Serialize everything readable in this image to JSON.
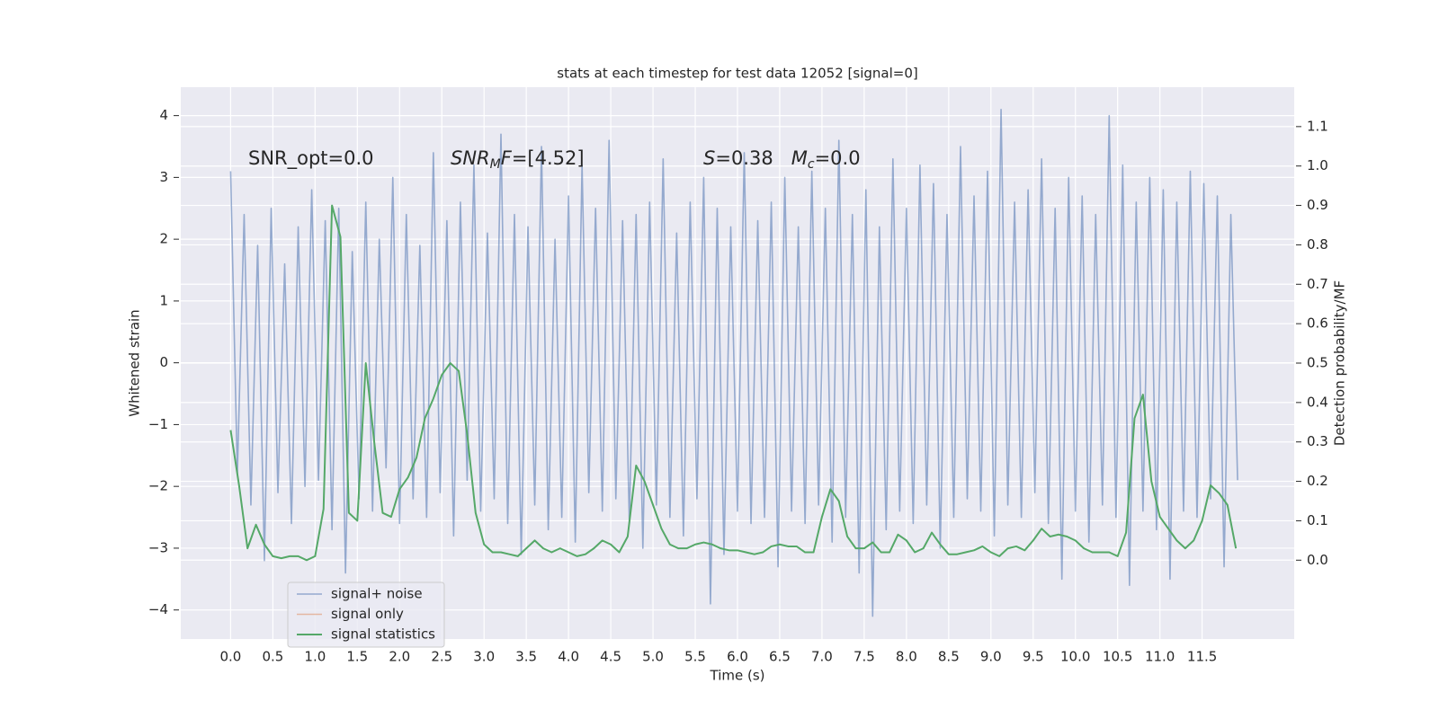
{
  "chart_data": {
    "type": "line",
    "title": "stats at each timestep for test data 12052 [signal=0]",
    "xlabel": "Time (s)",
    "ylabel": "Whitened strain",
    "y2label": "Detection probability/MF",
    "grid": true,
    "legend": "lower left",
    "annotations": [
      [
        "SNR_opt=0.0"
      ],
      [
        "SNR",
        "M",
        "F",
        "=[4.52]"
      ],
      [
        "S",
        "=0.38   ",
        "M",
        "c",
        "=0.0"
      ]
    ],
    "xlim": [
      -0.59,
      12.59
    ],
    "xticks": [
      {
        "value": 0,
        "label": "0.0"
      },
      0.5,
      {
        "value": 1,
        "label": "1.0"
      },
      1.5,
      {
        "value": 2,
        "label": "2.0"
      },
      2.5,
      {
        "value": 3,
        "label": "3.0"
      },
      3.5,
      {
        "value": 4,
        "label": "4.0"
      },
      4.5,
      {
        "value": 5,
        "label": "5.0"
      },
      5.5,
      {
        "value": 6,
        "label": "6.0"
      },
      6.5,
      {
        "value": 7,
        "label": "7.0"
      },
      7.5,
      {
        "value": 8,
        "label": "8.0"
      },
      8.5,
      {
        "value": 9,
        "label": "9.0"
      },
      9.5,
      {
        "value": 10,
        "label": "10.0"
      },
      10.5,
      {
        "value": 11,
        "label": "11.0"
      },
      11.5
    ],
    "ylim": [
      -4.47,
      4.46
    ],
    "yticks": [
      {
        "value": -4,
        "label": "−4"
      },
      {
        "value": -3,
        "label": "−3"
      },
      {
        "value": -2,
        "label": "−2"
      },
      {
        "value": -1,
        "label": "−1"
      },
      0,
      1,
      2,
      3,
      4
    ],
    "y2lim": [
      -0.2,
      1.2
    ],
    "y2ticks": [
      {
        "value": 0,
        "label": "0.0"
      },
      0.1,
      0.2,
      0.3,
      0.4,
      0.5,
      0.6,
      0.7,
      0.8,
      0.9,
      {
        "value": 1,
        "label": "1.0"
      },
      1.1
    ],
    "series": [
      {
        "name": "signal+ noise",
        "color": "#4c72b0",
        "x": [
          0,
          0.08,
          0.16,
          0.24,
          0.32,
          0.4,
          0.48,
          0.56,
          0.64,
          0.72,
          0.8,
          0.88,
          0.96,
          1.04,
          1.12,
          1.2,
          1.28,
          1.36,
          1.44,
          1.52,
          1.6,
          1.68,
          1.76,
          1.84,
          1.92,
          2,
          2.08,
          2.16,
          2.24,
          2.32,
          2.4,
          2.48,
          2.56,
          2.64,
          2.72,
          2.8,
          2.88,
          2.96,
          3.04,
          3.12,
          3.2,
          3.28,
          3.36,
          3.44,
          3.52,
          3.6,
          3.68,
          3.76,
          3.84,
          3.92,
          4,
          4.08,
          4.16,
          4.24,
          4.32,
          4.4,
          4.48,
          4.56,
          4.64,
          4.72,
          4.8,
          4.88,
          4.96,
          5.04,
          5.12,
          5.2,
          5.28,
          5.36,
          5.44,
          5.52,
          5.6,
          5.68,
          5.76,
          5.84,
          5.92,
          6,
          6.08,
          6.16,
          6.24,
          6.32,
          6.4,
          6.48,
          6.56,
          6.64,
          6.72,
          6.8,
          6.88,
          6.96,
          7.04,
          7.12,
          7.2,
          7.28,
          7.36,
          7.44,
          7.52,
          7.6,
          7.68,
          7.76,
          7.84,
          7.92,
          8,
          8.08,
          8.16,
          8.24,
          8.32,
          8.4,
          8.48,
          8.56,
          8.64,
          8.72,
          8.8,
          8.88,
          8.96,
          9.04,
          9.12,
          9.2,
          9.28,
          9.36,
          9.44,
          9.52,
          9.6,
          9.68,
          9.76,
          9.84,
          9.92,
          10,
          10.08,
          10.16,
          10.24,
          10.32,
          10.4,
          10.48,
          10.56,
          10.64,
          10.72,
          10.8,
          10.88,
          10.96,
          11.04,
          11.12,
          11.2,
          11.28,
          11.36,
          11.44,
          11.52,
          11.6,
          11.68,
          11.76,
          11.84,
          11.92
        ],
        "values": [
          3.1,
          -1.8,
          2.4,
          -2.3,
          1.9,
          -3.2,
          2.5,
          -2.1,
          1.6,
          -2.6,
          2.2,
          -2.0,
          2.8,
          -1.9,
          2.3,
          -2.7,
          2.5,
          -3.4,
          1.8,
          -2.2,
          2.6,
          -2.4,
          2.0,
          -1.7,
          3.0,
          -2.6,
          2.4,
          -2.2,
          1.9,
          -2.5,
          3.4,
          -2.1,
          2.3,
          -2.8,
          2.6,
          -1.9,
          3.2,
          -2.4,
          2.1,
          -2.2,
          3.7,
          -2.6,
          2.4,
          -3.1,
          2.2,
          -2.3,
          3.5,
          -2.7,
          2.0,
          -2.5,
          2.7,
          -2.9,
          3.2,
          -2.1,
          2.5,
          -2.4,
          3.6,
          -2.2,
          2.3,
          -2.6,
          2.4,
          -3.0,
          2.6,
          -2.3,
          3.3,
          -2.5,
          2.1,
          -2.8,
          2.6,
          -2.2,
          3.0,
          -3.9,
          2.5,
          -3.1,
          2.2,
          -2.4,
          3.4,
          -2.6,
          2.3,
          -2.5,
          2.6,
          -3.3,
          3.0,
          -2.4,
          2.2,
          -2.6,
          3.1,
          -2.3,
          2.5,
          -2.9,
          3.6,
          -2.5,
          2.4,
          -3.4,
          2.8,
          -4.1,
          2.2,
          -2.7,
          3.3,
          -2.4,
          2.5,
          -2.6,
          3.2,
          -2.3,
          2.9,
          -3.0,
          2.4,
          -2.5,
          3.5,
          -2.2,
          2.7,
          -2.4,
          3.1,
          -2.8,
          4.1,
          -2.3,
          2.6,
          -2.5,
          2.8,
          -2.1,
          3.3,
          -2.6,
          2.5,
          -3.5,
          3.0,
          -2.4,
          2.7,
          -2.9,
          2.4,
          -2.3,
          4.0,
          -2.5,
          3.2,
          -3.6,
          2.6,
          -2.4,
          3.0,
          -2.7,
          2.8,
          -3.5,
          2.6,
          -2.4,
          3.1,
          -2.5,
          2.9,
          -2.2,
          2.7,
          -3.3,
          2.4,
          -1.9
        ]
      },
      {
        "name": "signal only",
        "color": "#dd8452"
      },
      {
        "name": "signal statistics",
        "color": "#55a868",
        "axis": "y2",
        "x": [
          0,
          0.1,
          0.2,
          0.3,
          0.4,
          0.5,
          0.6,
          0.7,
          0.8,
          0.9,
          1,
          1.1,
          1.2,
          1.3,
          1.4,
          1.5,
          1.6,
          1.7,
          1.8,
          1.9,
          2,
          2.1,
          2.2,
          2.3,
          2.4,
          2.5,
          2.6,
          2.7,
          2.8,
          2.9,
          3,
          3.1,
          3.2,
          3.3,
          3.4,
          3.5,
          3.6,
          3.7,
          3.8,
          3.9,
          4,
          4.1,
          4.2,
          4.3,
          4.4,
          4.5,
          4.6,
          4.7,
          4.8,
          4.9,
          5,
          5.1,
          5.2,
          5.3,
          5.4,
          5.5,
          5.6,
          5.7,
          5.8,
          5.9,
          6,
          6.1,
          6.2,
          6.3,
          6.4,
          6.5,
          6.6,
          6.7,
          6.8,
          6.9,
          7,
          7.1,
          7.2,
          7.3,
          7.4,
          7.5,
          7.6,
          7.7,
          7.8,
          7.9,
          8,
          8.1,
          8.2,
          8.3,
          8.4,
          8.5,
          8.6,
          8.7,
          8.8,
          8.9,
          9,
          9.1,
          9.2,
          9.3,
          9.4,
          9.5,
          9.6,
          9.7,
          9.8,
          9.9,
          10,
          10.1,
          10.2,
          10.3,
          10.4,
          10.5,
          10.6,
          10.7,
          10.8,
          10.9,
          11,
          11.1,
          11.2,
          11.3,
          11.4,
          11.5,
          11.6,
          11.7,
          11.8,
          11.9
        ],
        "values": [
          0.33,
          0.19,
          0.03,
          0.09,
          0.04,
          0.01,
          0.005,
          0.01,
          0.01,
          0,
          0.01,
          0.13,
          0.9,
          0.82,
          0.12,
          0.1,
          0.5,
          0.3,
          0.12,
          0.11,
          0.18,
          0.21,
          0.26,
          0.36,
          0.41,
          0.47,
          0.5,
          0.48,
          0.32,
          0.12,
          0.04,
          0.02,
          0.02,
          0.015,
          0.01,
          0.03,
          0.05,
          0.03,
          0.02,
          0.03,
          0.02,
          0.01,
          0.015,
          0.03,
          0.05,
          0.04,
          0.02,
          0.06,
          0.24,
          0.2,
          0.14,
          0.08,
          0.04,
          0.03,
          0.03,
          0.04,
          0.045,
          0.04,
          0.03,
          0.025,
          0.025,
          0.02,
          0.015,
          0.02,
          0.035,
          0.04,
          0.035,
          0.035,
          0.02,
          0.02,
          0.11,
          0.18,
          0.15,
          0.06,
          0.03,
          0.03,
          0.045,
          0.02,
          0.02,
          0.065,
          0.05,
          0.02,
          0.03,
          0.07,
          0.04,
          0.015,
          0.015,
          0.02,
          0.025,
          0.035,
          0.02,
          0.01,
          0.03,
          0.035,
          0.025,
          0.05,
          0.08,
          0.06,
          0.065,
          0.06,
          0.05,
          0.03,
          0.02,
          0.02,
          0.02,
          0.01,
          0.07,
          0.36,
          0.42,
          0.2,
          0.11,
          0.08,
          0.05,
          0.03,
          0.05,
          0.1,
          0.19,
          0.17,
          0.14,
          0.03
        ]
      }
    ]
  }
}
